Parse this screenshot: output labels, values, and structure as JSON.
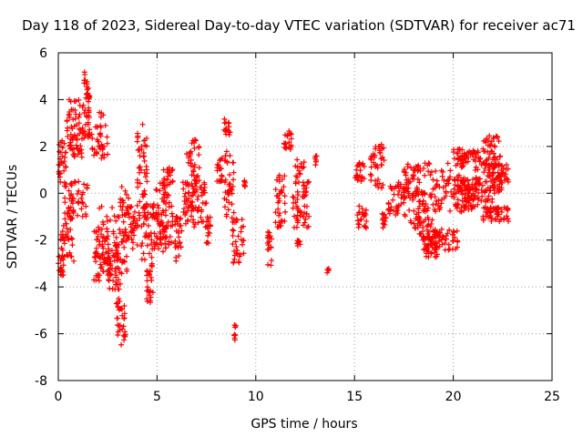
{
  "chart_data": {
    "type": "scatter",
    "title": "Day 118 of 2023, Sidereal Day-to-day VTEC variation (SDTVAR) for receiver ac71",
    "xlabel": "GPS time / hours",
    "ylabel": "SDTVAR / TECUs",
    "xlim": [
      0,
      25
    ],
    "ylim": [
      -8,
      6
    ],
    "x_ticks": [
      "0",
      "5",
      "10",
      "15",
      "20",
      "25"
    ],
    "y_ticks": [
      "6",
      "4",
      "2",
      "0",
      "-2",
      "-4",
      "-6",
      "-8"
    ],
    "grid": true,
    "marker": "+",
    "color": "#ff0000",
    "series": [
      {
        "name": "SDTVAR",
        "clusters": [
          {
            "x": [
              0.0,
              0.3
            ],
            "y": [
              -3.6,
              -2.5
            ]
          },
          {
            "x": [
              0.0,
              0.4
            ],
            "y": [
              0.4,
              2.3
            ]
          },
          {
            "x": [
              0.1,
              0.8
            ],
            "y": [
              -3.0,
              -1.0
            ]
          },
          {
            "x": [
              0.3,
              1.5
            ],
            "y": [
              -1.0,
              0.5
            ]
          },
          {
            "x": [
              0.4,
              1.6
            ],
            "y": [
              2.3,
              4.0
            ]
          },
          {
            "x": [
              0.5,
              1.2
            ],
            "y": [
              1.5,
              2.5
            ]
          },
          {
            "x": [
              1.3,
              1.6
            ],
            "y": [
              4.0,
              5.3
            ]
          },
          {
            "x": [
              1.5,
              2.5
            ],
            "y": [
              1.5,
              3.5
            ]
          },
          {
            "x": [
              1.8,
              2.6
            ],
            "y": [
              -3.8,
              -1.5
            ]
          },
          {
            "x": [
              2.0,
              3.0
            ],
            "y": [
              -3.5,
              -0.5
            ]
          },
          {
            "x": [
              2.5,
              3.2
            ],
            "y": [
              -4.2,
              -2.5
            ]
          },
          {
            "x": [
              2.9,
              3.4
            ],
            "y": [
              -6.5,
              -4.5
            ]
          },
          {
            "x": [
              3.0,
              3.6
            ],
            "y": [
              -3.5,
              0.5
            ]
          },
          {
            "x": [
              3.5,
              4.0
            ],
            "y": [
              -2.5,
              -0.5
            ]
          },
          {
            "x": [
              4.0,
              4.5
            ],
            "y": [
              -1.5,
              3.0
            ]
          },
          {
            "x": [
              4.2,
              4.9
            ],
            "y": [
              -3.0,
              -0.5
            ]
          },
          {
            "x": [
              4.4,
              4.8
            ],
            "y": [
              -4.7,
              -3.0
            ]
          },
          {
            "x": [
              4.8,
              5.5
            ],
            "y": [
              -2.5,
              0.5
            ]
          },
          {
            "x": [
              5.0,
              5.8
            ],
            "y": [
              -2.2,
              -0.5
            ]
          },
          {
            "x": [
              5.3,
              5.8
            ],
            "y": [
              -0.5,
              1.2
            ]
          },
          {
            "x": [
              5.9,
              6.3
            ],
            "y": [
              -3.0,
              -1.0
            ]
          },
          {
            "x": [
              6.3,
              6.8
            ],
            "y": [
              -1.5,
              0.5
            ]
          },
          {
            "x": [
              6.5,
              7.2
            ],
            "y": [
              0.0,
              2.3
            ]
          },
          {
            "x": [
              6.8,
              7.5
            ],
            "y": [
              -1.5,
              0.5
            ]
          },
          {
            "x": [
              7.5,
              7.7
            ],
            "y": [
              -2.3,
              -1.0
            ]
          },
          {
            "x": [
              8.0,
              8.3
            ],
            "y": [
              0.5,
              1.5
            ]
          },
          {
            "x": [
              8.4,
              8.7
            ],
            "y": [
              2.5,
              3.2
            ]
          },
          {
            "x": [
              8.4,
              8.9
            ],
            "y": [
              -1.0,
              1.8
            ]
          },
          {
            "x": [
              8.8,
              9.4
            ],
            "y": [
              -3.0,
              -1.0
            ]
          },
          {
            "x": [
              8.9,
              9.0
            ],
            "y": [
              -6.3,
              -5.5
            ]
          },
          {
            "x": [
              9.4,
              9.5
            ],
            "y": [
              0.2,
              0.6
            ]
          },
          {
            "x": [
              10.6,
              10.8
            ],
            "y": [
              -3.1,
              -1.5
            ]
          },
          {
            "x": [
              11.0,
              11.5
            ],
            "y": [
              -1.5,
              0.8
            ]
          },
          {
            "x": [
              11.4,
              11.8
            ],
            "y": [
              1.8,
              2.7
            ]
          },
          {
            "x": [
              11.8,
              12.5
            ],
            "y": [
              -1.5,
              1.5
            ]
          },
          {
            "x": [
              12.1,
              12.3
            ],
            "y": [
              -2.3,
              -2.0
            ]
          },
          {
            "x": [
              12.4,
              12.7
            ],
            "y": [
              -1.5,
              0.5
            ]
          },
          {
            "x": [
              13.0,
              13.1
            ],
            "y": [
              1.2,
              1.7
            ]
          },
          {
            "x": [
              13.6,
              13.7
            ],
            "y": [
              -3.4,
              -3.2
            ]
          },
          {
            "x": [
              15.0,
              15.5
            ],
            "y": [
              0.5,
              1.3
            ]
          },
          {
            "x": [
              15.1,
              15.6
            ],
            "y": [
              -1.5,
              -0.5
            ]
          },
          {
            "x": [
              15.8,
              16.5
            ],
            "y": [
              0.2,
              2.1
            ]
          },
          {
            "x": [
              16.4,
              16.6
            ],
            "y": [
              -1.5,
              -0.8
            ]
          },
          {
            "x": [
              16.7,
              17.8
            ],
            "y": [
              -1.0,
              0.5
            ]
          },
          {
            "x": [
              17.5,
              18.5
            ],
            "y": [
              0.0,
              1.3
            ]
          },
          {
            "x": [
              17.8,
              18.6
            ],
            "y": [
              -1.5,
              0.0
            ]
          },
          {
            "x": [
              18.2,
              19.0
            ],
            "y": [
              -2.5,
              -1.0
            ]
          },
          {
            "x": [
              18.5,
              19.2
            ],
            "y": [
              -2.8,
              -1.8
            ]
          },
          {
            "x": [
              18.5,
              20.5
            ],
            "y": [
              -0.8,
              1.5
            ]
          },
          {
            "x": [
              19.0,
              20.3
            ],
            "y": [
              -2.5,
              -1.5
            ]
          },
          {
            "x": [
              20.0,
              21.0
            ],
            "y": [
              -0.8,
              0.8
            ]
          },
          {
            "x": [
              20.0,
              21.3
            ],
            "y": [
              1.3,
              1.9
            ]
          },
          {
            "x": [
              20.5,
              22.0
            ],
            "y": [
              -0.8,
              0.6
            ]
          },
          {
            "x": [
              21.0,
              22.5
            ],
            "y": [
              0.0,
              1.5
            ]
          },
          {
            "x": [
              21.5,
              22.4
            ],
            "y": [
              1.2,
              2.5
            ]
          },
          {
            "x": [
              22.0,
              22.8
            ],
            "y": [
              0.2,
              1.3
            ]
          },
          {
            "x": [
              21.5,
              22.8
            ],
            "y": [
              -1.2,
              -0.6
            ]
          }
        ]
      }
    ]
  }
}
